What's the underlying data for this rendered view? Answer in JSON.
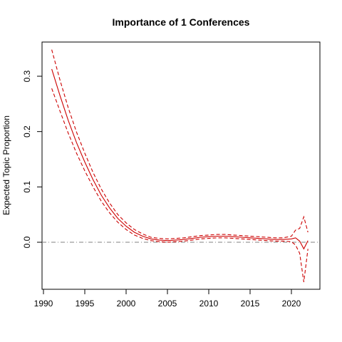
{
  "chart_data": {
    "type": "line",
    "title": "Importance of 1 Conferences",
    "xlabel": "",
    "ylabel": "Expected Topic Proportion",
    "xlim": [
      1991,
      2022
    ],
    "ylim": [
      -0.088,
      0.35
    ],
    "x_ticks": [
      1990,
      1995,
      2000,
      2005,
      2010,
      2015,
      2020
    ],
    "y_ticks": [
      0.0,
      0.1,
      0.2,
      0.3
    ],
    "x_tick_labels": [
      "1990",
      "1995",
      "2000",
      "2005",
      "2010",
      "2015",
      "2020"
    ],
    "y_tick_labels": [
      "0.0",
      "0.1",
      "0.2",
      "0.3"
    ],
    "reference_line": {
      "y": 0.0,
      "style": "dash-dot",
      "color": "#808080"
    },
    "grid": false,
    "series": [
      {
        "role": "estimate",
        "style": "solid",
        "color": "#cc0000",
        "x": [
          1991,
          1992,
          1993,
          1994,
          1995,
          1996,
          1997,
          1998,
          1999,
          2000,
          2001,
          2002,
          2003,
          2004,
          2005,
          2006,
          2007,
          2008,
          2009,
          2010,
          2011,
          2012,
          2013,
          2014,
          2015,
          2016,
          2017,
          2018,
          2019,
          2020,
          2020.5,
          2021,
          2021.5,
          2022
        ],
        "y": [
          0.313,
          0.265,
          0.22,
          0.18,
          0.145,
          0.113,
          0.085,
          0.062,
          0.043,
          0.029,
          0.018,
          0.011,
          0.006,
          0.004,
          0.003,
          0.004,
          0.005,
          0.007,
          0.009,
          0.01,
          0.011,
          0.011,
          0.01,
          0.009,
          0.008,
          0.007,
          0.006,
          0.005,
          0.005,
          0.006,
          0.008,
          0.002,
          -0.012,
          0.003
        ]
      },
      {
        "role": "upper-bound",
        "style": "dashed",
        "color": "#cc0000",
        "x": [
          1991,
          1992,
          1993,
          1994,
          1995,
          1996,
          1997,
          1998,
          1999,
          2000,
          2001,
          2002,
          2003,
          2004,
          2005,
          2006,
          2007,
          2008,
          2009,
          2010,
          2011,
          2012,
          2013,
          2014,
          2015,
          2016,
          2017,
          2018,
          2019,
          2020,
          2020.5,
          2021,
          2021.5,
          2022
        ],
        "y": [
          0.348,
          0.293,
          0.243,
          0.199,
          0.161,
          0.126,
          0.096,
          0.071,
          0.05,
          0.035,
          0.023,
          0.015,
          0.009,
          0.007,
          0.006,
          0.007,
          0.008,
          0.01,
          0.012,
          0.013,
          0.014,
          0.014,
          0.013,
          0.012,
          0.011,
          0.01,
          0.009,
          0.008,
          0.008,
          0.011,
          0.022,
          0.025,
          0.046,
          0.018
        ]
      },
      {
        "role": "lower-bound",
        "style": "dashed",
        "color": "#cc0000",
        "x": [
          1991,
          1992,
          1993,
          1994,
          1995,
          1996,
          1997,
          1998,
          1999,
          2000,
          2001,
          2002,
          2003,
          2004,
          2005,
          2006,
          2007,
          2008,
          2009,
          2010,
          2011,
          2012,
          2013,
          2014,
          2015,
          2016,
          2017,
          2018,
          2019,
          2020,
          2020.5,
          2021,
          2021.5,
          2022
        ],
        "y": [
          0.278,
          0.237,
          0.197,
          0.161,
          0.129,
          0.1,
          0.074,
          0.053,
          0.036,
          0.023,
          0.013,
          0.007,
          0.003,
          0.001,
          0.0,
          0.001,
          0.002,
          0.004,
          0.006,
          0.007,
          0.008,
          0.008,
          0.007,
          0.006,
          0.005,
          0.004,
          0.003,
          0.002,
          0.002,
          0.001,
          -0.005,
          -0.02,
          -0.072,
          -0.012
        ]
      }
    ]
  }
}
